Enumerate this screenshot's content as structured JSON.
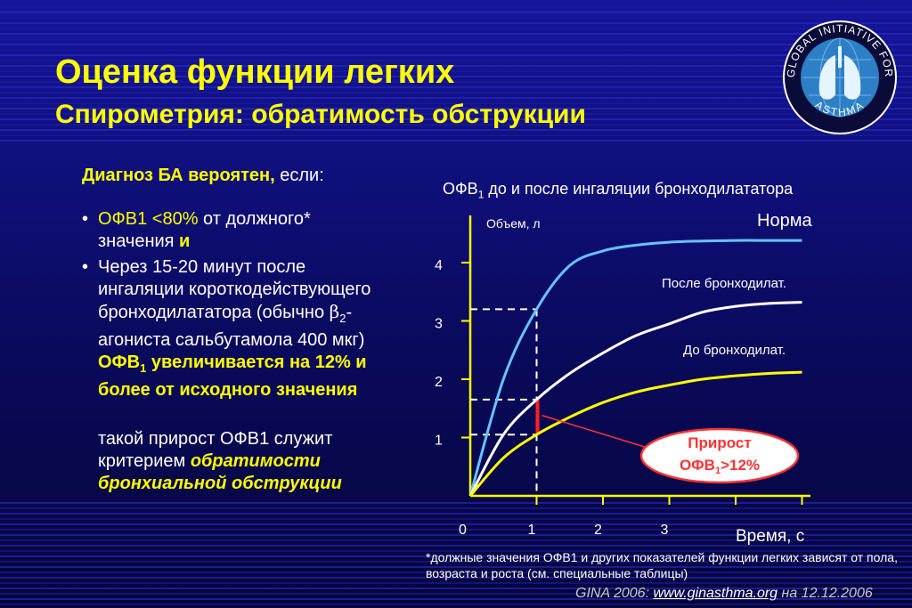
{
  "header": {
    "title": "Оценка функции легких",
    "subtitle": "Спирометрия: обратимость обструкции"
  },
  "logo": {
    "text_top": "GLOBAL INITIATIVE FOR",
    "text_bottom": "ASTHMA",
    "icon": "lungs-icon"
  },
  "left": {
    "diag_bold": "Диагноз БА вероятен,",
    "diag_rest": " если:",
    "b1_a": "ОФВ1 <80%",
    "b1_b": " от должного* значения ",
    "b1_c": "и",
    "b2_a": "Через 15-20 минут после ингаляции короткодействующего бронходилататора (обычно ",
    "beta": "β",
    "beta_sub": "2",
    "b2_b": "-агониста сальбутамола 400 мкг) ",
    "b2_bold1": "ОФВ",
    "b2_bold_sub": "1",
    "b2_bold2": " увеличивается на 12% и более от исходного значения",
    "p_a": "такой прирост ОФВ1 служит критерием ",
    "p_b": "обратимости бронхиальной обструкции"
  },
  "chart_heading": {
    "main": "ОФВ",
    "sub": "1",
    "rest": " до и после ингаляции бронходилататора"
  },
  "chart_data": {
    "type": "line",
    "ylabel": "Объем, л",
    "xlabel": "Время, с",
    "xticks": [
      "0",
      "1",
      "2",
      "3"
    ],
    "yticks": [
      "1",
      "2",
      "3",
      "4"
    ],
    "series": [
      {
        "name": "Норма",
        "color": "#66c2ff",
        "x": [
          0,
          0.5,
          1,
          1.5,
          2,
          2.5,
          3,
          3.5,
          4,
          4.5,
          5
        ],
        "y": [
          0,
          2.0,
          3.2,
          3.95,
          4.2,
          4.3,
          4.35,
          4.37,
          4.38,
          4.38,
          4.38
        ]
      },
      {
        "name": "После бронходилат.",
        "color": "#ffffff",
        "x": [
          0,
          0.5,
          1,
          1.5,
          2,
          2.5,
          3,
          3.5,
          4,
          4.5,
          5
        ],
        "y": [
          0,
          1.05,
          1.65,
          2.1,
          2.45,
          2.75,
          2.95,
          3.15,
          3.25,
          3.3,
          3.32
        ]
      },
      {
        "name": "До бронходилат.",
        "color": "#ffff00",
        "x": [
          0,
          0.5,
          1,
          1.5,
          2,
          2.5,
          3,
          3.5,
          4,
          4.5,
          5
        ],
        "y": [
          0,
          0.65,
          1.05,
          1.35,
          1.6,
          1.78,
          1.9,
          2.0,
          2.06,
          2.1,
          2.12
        ]
      }
    ],
    "reference_lines": [
      {
        "x": 1,
        "y": 3.2
      },
      {
        "x": 1,
        "y": 1.65
      },
      {
        "x": 1,
        "y": 1.05
      }
    ],
    "callout": {
      "line1": "Прирост",
      "line2a": "ОФВ",
      "line2sub": "1",
      "line2b": ">12%",
      "color": "#ff3333"
    }
  },
  "footer": {
    "footnote": "*должные значения ОФВ1 и других показателей функции легких зависят от пола, возраста и роста (см. специальные таблицы)",
    "source_a": "GINA 2006: ",
    "source_link": "www.ginasthma.org",
    "source_b": " на 12.12.2006"
  }
}
